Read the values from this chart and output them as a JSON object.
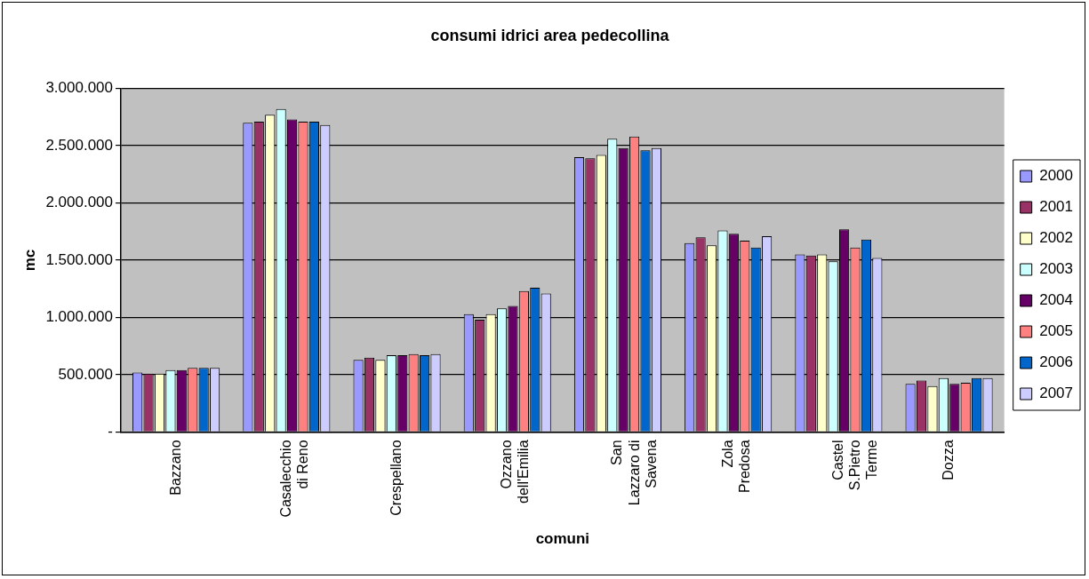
{
  "chart_data": {
    "type": "bar",
    "title": "consumi idrici area pedecollina",
    "xlabel": "comuni",
    "ylabel": "mc",
    "categories": [
      "Bazzano",
      "Casalecchio di Reno",
      "Crespellano",
      "Ozzano dell'Emilia",
      "San Lazzaro di Savena",
      "Zola Predosa",
      "Castel S.Pietro Terme",
      "Dozza"
    ],
    "series": [
      {
        "name": "2000",
        "color": "#9999ff",
        "values": [
          520000,
          2700000,
          630000,
          1030000,
          2400000,
          1650000,
          1550000,
          420000
        ]
      },
      {
        "name": "2001",
        "color": "#993366",
        "values": [
          510000,
          2710000,
          650000,
          980000,
          2390000,
          1700000,
          1540000,
          450000
        ]
      },
      {
        "name": "2002",
        "color": "#ffffcc",
        "values": [
          510000,
          2770000,
          630000,
          1030000,
          2420000,
          1630000,
          1550000,
          400000
        ]
      },
      {
        "name": "2003",
        "color": "#ccffff",
        "values": [
          540000,
          2820000,
          670000,
          1080000,
          2560000,
          1760000,
          1490000,
          470000
        ]
      },
      {
        "name": "2004",
        "color": "#660066",
        "values": [
          540000,
          2730000,
          670000,
          1100000,
          2480000,
          1730000,
          1770000,
          420000
        ]
      },
      {
        "name": "2005",
        "color": "#ff8080",
        "values": [
          560000,
          2710000,
          680000,
          1230000,
          2580000,
          1670000,
          1610000,
          430000
        ]
      },
      {
        "name": "2006",
        "color": "#0066cc",
        "values": [
          560000,
          2710000,
          670000,
          1260000,
          2460000,
          1610000,
          1680000,
          470000
        ]
      },
      {
        "name": "2007",
        "color": "#ccccff",
        "values": [
          560000,
          2680000,
          680000,
          1210000,
          2480000,
          1710000,
          1520000,
          470000
        ]
      }
    ],
    "ylim": [
      0,
      3000000
    ],
    "yticks": [
      {
        "value": 0,
        "label": "-"
      },
      {
        "value": 500000,
        "label": "500.000"
      },
      {
        "value": 1000000,
        "label": "1.000.000"
      },
      {
        "value": 1500000,
        "label": "1.500.000"
      },
      {
        "value": 2000000,
        "label": "2.000.000"
      },
      {
        "value": 2500000,
        "label": "2.500.000"
      },
      {
        "value": 3000000,
        "label": "3.000.000"
      }
    ],
    "grid": "y",
    "legend": "right"
  }
}
